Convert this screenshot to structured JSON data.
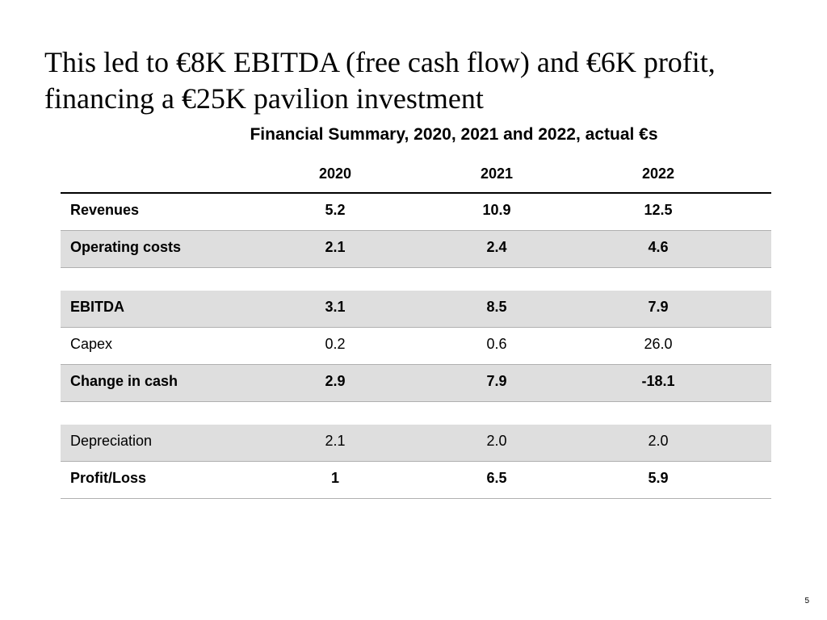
{
  "slide": {
    "title": "This led to €8K EBITDA (free cash flow) and €6K profit, financing a €25K pavilion investment",
    "subtitle": "Financial Summary, 2020, 2021 and 2022, actual €s",
    "page_number": "5"
  },
  "table": {
    "columns": [
      "",
      "2020",
      "2021",
      "2022"
    ],
    "sections": [
      {
        "rows": [
          {
            "label": "Revenues",
            "values": [
              "5.2",
              "10.9",
              "12.5"
            ],
            "bold": true,
            "shaded": false
          },
          {
            "label": "Operating costs",
            "values": [
              "2.1",
              "2.4",
              "4.6"
            ],
            "bold": true,
            "shaded": true
          }
        ]
      },
      {
        "rows": [
          {
            "label": "EBITDA",
            "values": [
              "3.1",
              "8.5",
              "7.9"
            ],
            "bold": true,
            "shaded": true
          },
          {
            "label": "Capex",
            "values": [
              "0.2",
              "0.6",
              "26.0"
            ],
            "bold": false,
            "shaded": false
          },
          {
            "label": "Change in cash",
            "values": [
              "2.9",
              "7.9",
              "-18.1"
            ],
            "bold": true,
            "shaded": true
          }
        ]
      },
      {
        "rows": [
          {
            "label": "Depreciation",
            "values": [
              "2.1",
              "2.0",
              "2.0"
            ],
            "bold": false,
            "shaded": true
          },
          {
            "label": "Profit/Loss",
            "values": [
              "1",
              "6.5",
              "5.9"
            ],
            "bold": true,
            "shaded": false
          }
        ]
      }
    ]
  },
  "styling": {
    "background_color": "#ffffff",
    "shaded_row_color": "#dedede",
    "border_color": "#b0b0b0",
    "header_border_color": "#000000",
    "text_color": "#000000",
    "title_font": "Georgia, serif",
    "title_fontsize": 36,
    "subtitle_fontsize": 21,
    "cell_fontsize": 18,
    "col_label_width": 240,
    "col_val_width": 200
  }
}
